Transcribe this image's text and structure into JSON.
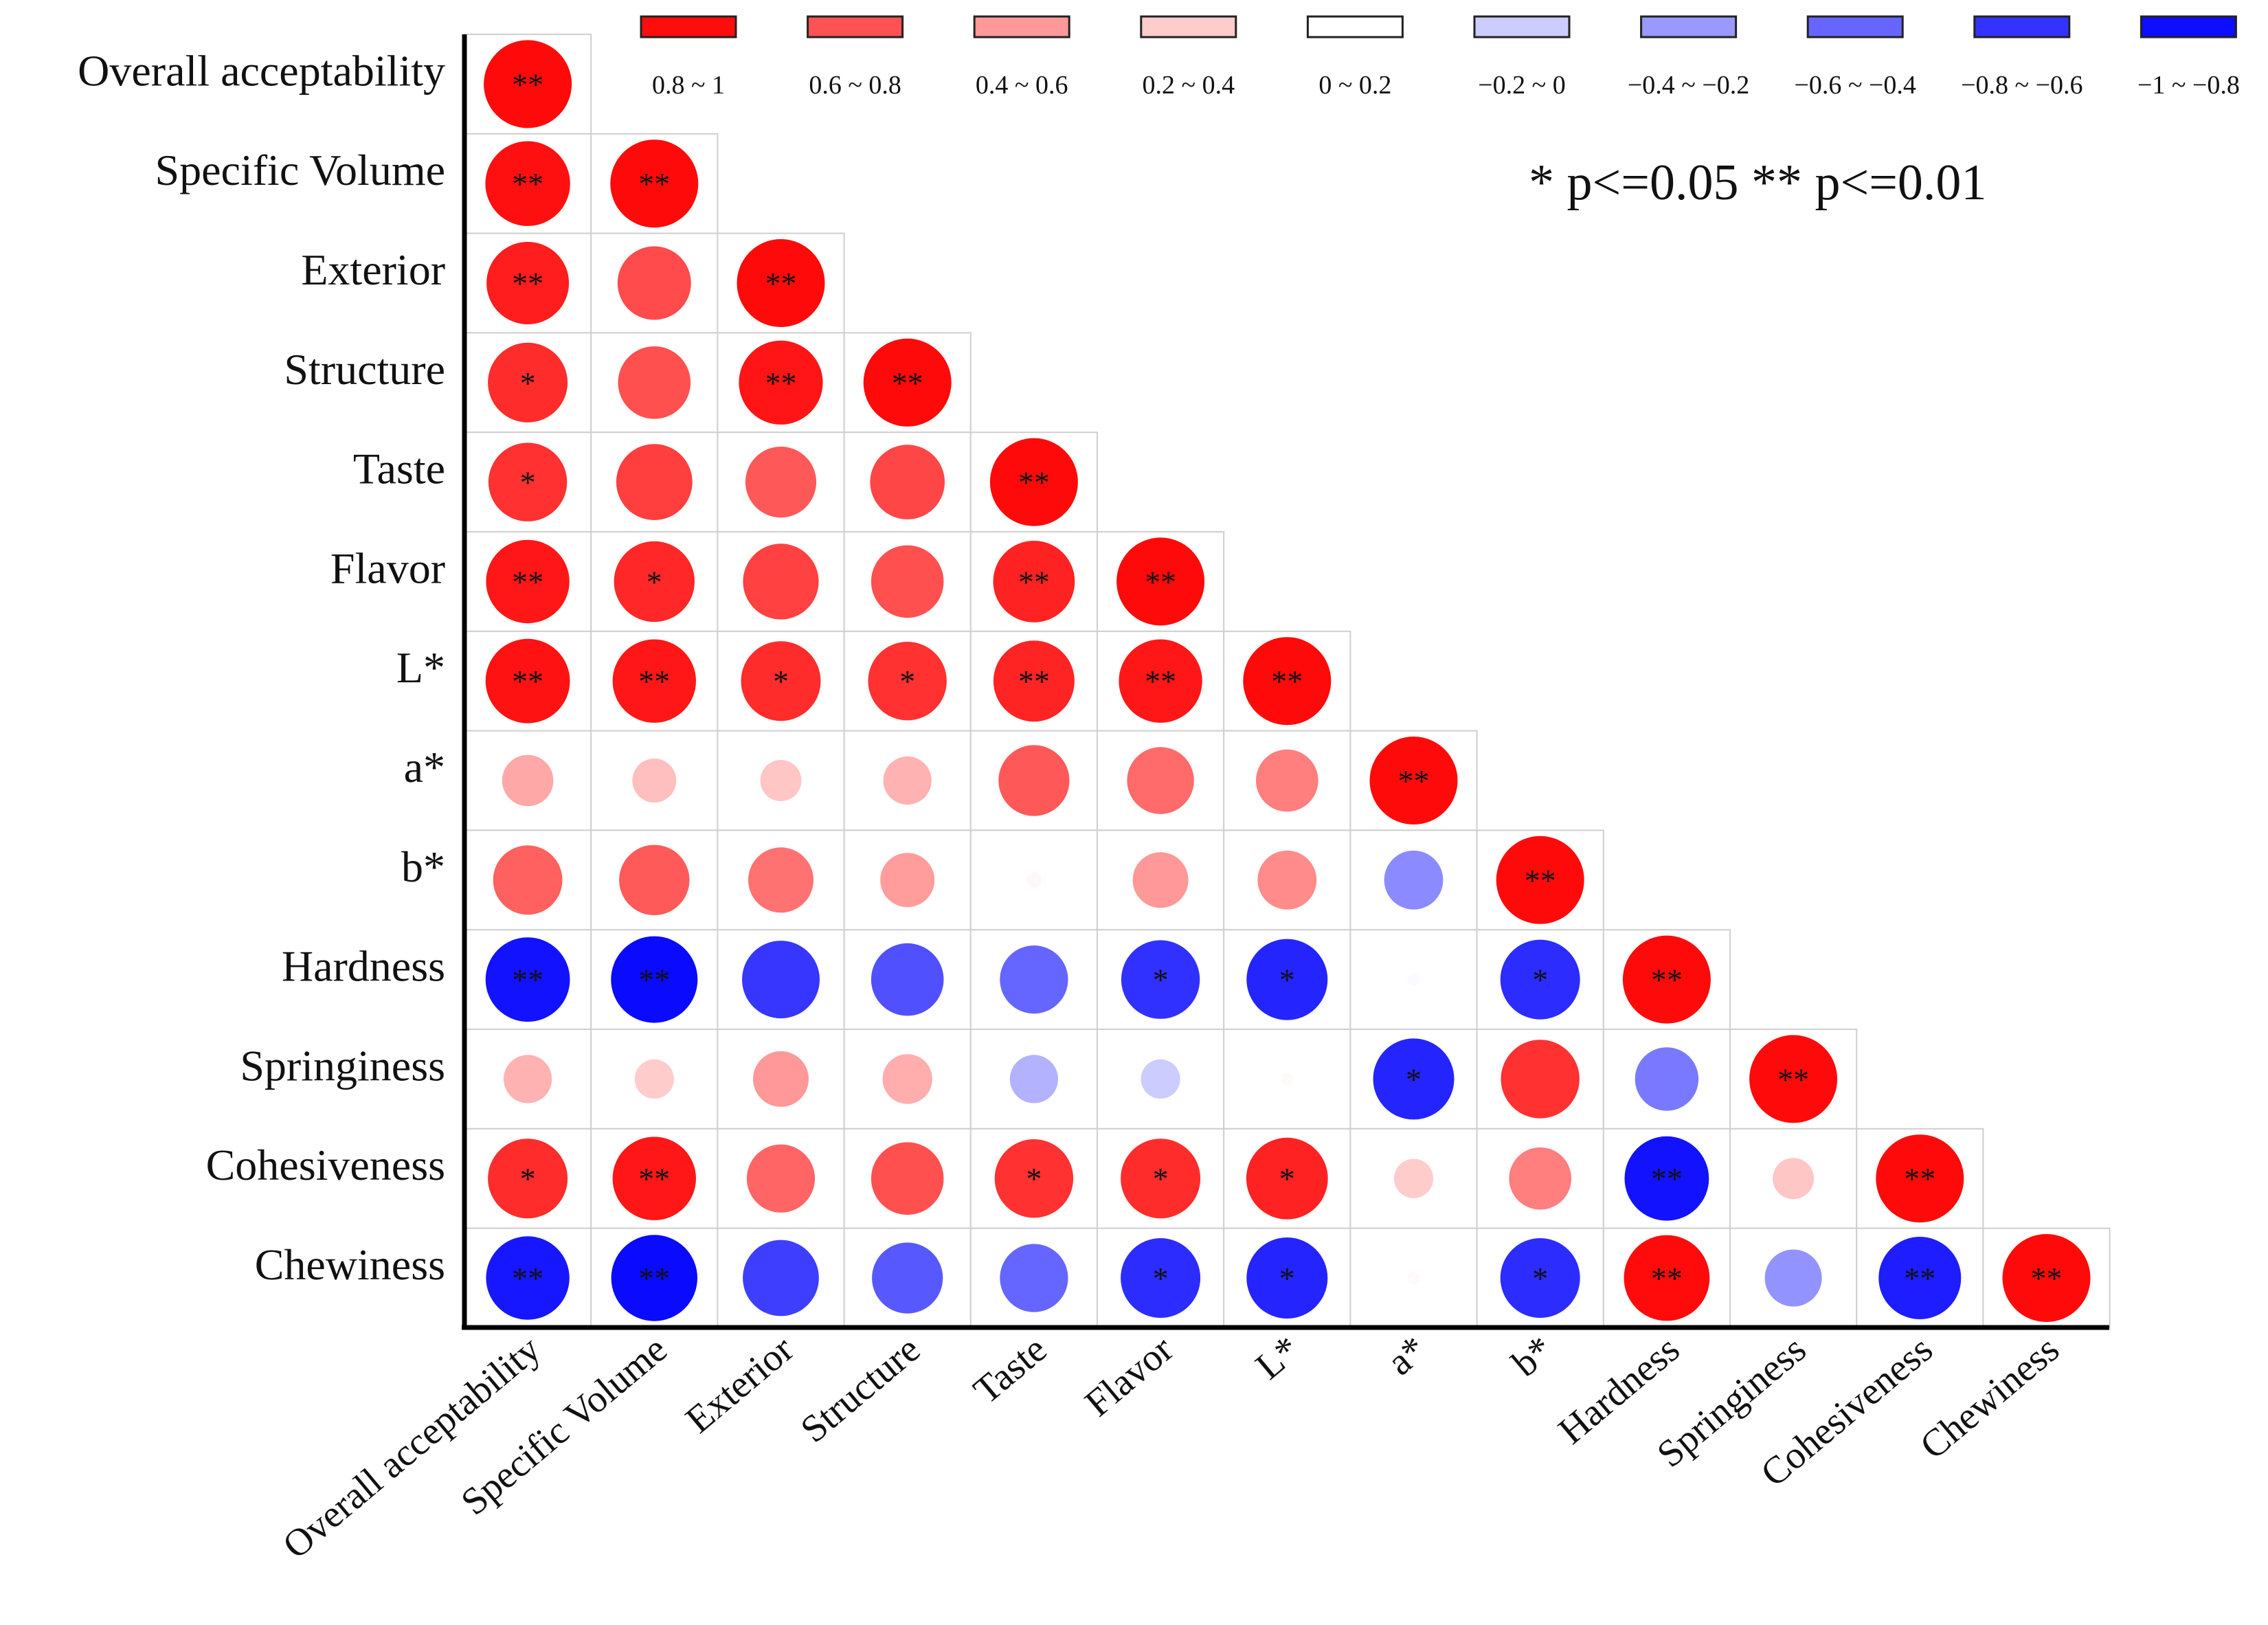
{
  "chart_data": {
    "type": "heatmap",
    "subtype": "lower-triangular correlation matrix (circles)",
    "variables": [
      "Overall acceptability",
      "Specific Volume",
      "Exterior",
      "Structure",
      "Taste",
      "Flavor",
      "L*",
      "a*",
      "b*",
      "Hardness",
      "Springiness",
      "Cohesiveness",
      "Chewiness"
    ],
    "row_labels": [
      "Overall acceptability",
      "Specific Volume",
      "Exterior",
      "Structure",
      "Taste",
      "Flavor",
      "L*",
      "a*",
      "b*",
      "Hardness",
      "Springiness",
      "Cohesiveness",
      "Chewiness"
    ],
    "col_labels": [
      "Overall acceptability",
      "Specific Volume",
      "Exterior",
      "Structure",
      "Taste",
      "Flavor",
      "L*",
      "a*",
      "b*",
      "Hardness",
      "Springiness",
      "Cohesiveness",
      "Chewiness"
    ],
    "value_range": [
      -1,
      1
    ],
    "correlations": [
      [
        1.0
      ],
      [
        0.93,
        1.0
      ],
      [
        0.88,
        0.7,
        1.0
      ],
      [
        0.82,
        0.68,
        0.91,
        1.0
      ],
      [
        0.8,
        0.75,
        0.65,
        0.72,
        1.0
      ],
      [
        0.9,
        0.84,
        0.74,
        0.68,
        0.86,
        1.0
      ],
      [
        0.92,
        0.9,
        0.82,
        0.8,
        0.85,
        0.9,
        1.0
      ],
      [
        0.34,
        0.25,
        0.22,
        0.3,
        0.65,
        0.58,
        0.5,
        1.0
      ],
      [
        0.62,
        0.64,
        0.55,
        0.38,
        0.03,
        0.4,
        0.45,
        -0.45,
        1.0
      ],
      [
        -0.92,
        -0.97,
        -0.78,
        -0.68,
        -0.6,
        -0.8,
        -0.85,
        -0.02,
        -0.82,
        1.0
      ],
      [
        0.3,
        0.2,
        0.4,
        0.32,
        -0.3,
        -0.2,
        0.02,
        -0.85,
        0.8,
        -0.52,
        1.0
      ],
      [
        0.82,
        0.9,
        0.6,
        0.68,
        0.8,
        0.82,
        0.86,
        0.2,
        0.5,
        -0.92,
        0.22,
        1.0
      ],
      [
        -0.9,
        -0.96,
        -0.75,
        -0.65,
        -0.6,
        -0.82,
        -0.85,
        0.02,
        -0.82,
        0.95,
        -0.42,
        -0.88,
        1.0
      ]
    ],
    "significance": [
      [
        "**"
      ],
      [
        "**",
        "**"
      ],
      [
        "**",
        "",
        "**"
      ],
      [
        "*",
        "",
        "**",
        "**"
      ],
      [
        "*",
        "",
        "",
        "",
        "**"
      ],
      [
        "**",
        "*",
        "",
        "",
        "**",
        "**"
      ],
      [
        "**",
        "**",
        "*",
        "*",
        "**",
        "**",
        "**"
      ],
      [
        "",
        "",
        "",
        "",
        "",
        "",
        "",
        "**"
      ],
      [
        "",
        "",
        "",
        "",
        "",
        "",
        "",
        "",
        "**"
      ],
      [
        "**",
        "**",
        "",
        "",
        "",
        "*",
        "*",
        "",
        "*",
        "**"
      ],
      [
        "",
        "",
        "",
        "",
        "",
        "",
        "",
        "*",
        "",
        "",
        "**"
      ],
      [
        "*",
        "**",
        "",
        "",
        "*",
        "*",
        "*",
        "",
        "",
        "**",
        "",
        "**"
      ],
      [
        "**",
        "**",
        "",
        "",
        "",
        "*",
        "*",
        "",
        "*",
        "**",
        "",
        "**",
        "**"
      ]
    ],
    "legend": {
      "bins": [
        {
          "label": "0.8 ~ 1",
          "color": "#ff0d0d"
        },
        {
          "label": "0.6 ~ 0.8",
          "color": "#ff5252"
        },
        {
          "label": "0.4 ~ 0.6",
          "color": "#ff9999"
        },
        {
          "label": "0.2 ~ 0.4",
          "color": "#ffcccc"
        },
        {
          "label": "0 ~ 0.2",
          "color": "#ffffff"
        },
        {
          "label": "−0.2 ~ 0",
          "color": "#ccccff"
        },
        {
          "label": "−0.4 ~ −0.2",
          "color": "#9999ff"
        },
        {
          "label": "−0.6 ~ −0.4",
          "color": "#6666ff"
        },
        {
          "label": "−0.8 ~ −0.6",
          "color": "#3333ff"
        },
        {
          "label": "−1 ~ −0.8",
          "color": "#0d0dff"
        }
      ],
      "placement": "top-right"
    },
    "significance_note": "* p<=0.05  ** p<=0.01",
    "colors": {
      "positive": "#ff0000",
      "negative": "#0000ff",
      "neutral": "#ffffff",
      "grid": "#cfcfcf",
      "axis": "#000000",
      "text": "#111111"
    }
  }
}
